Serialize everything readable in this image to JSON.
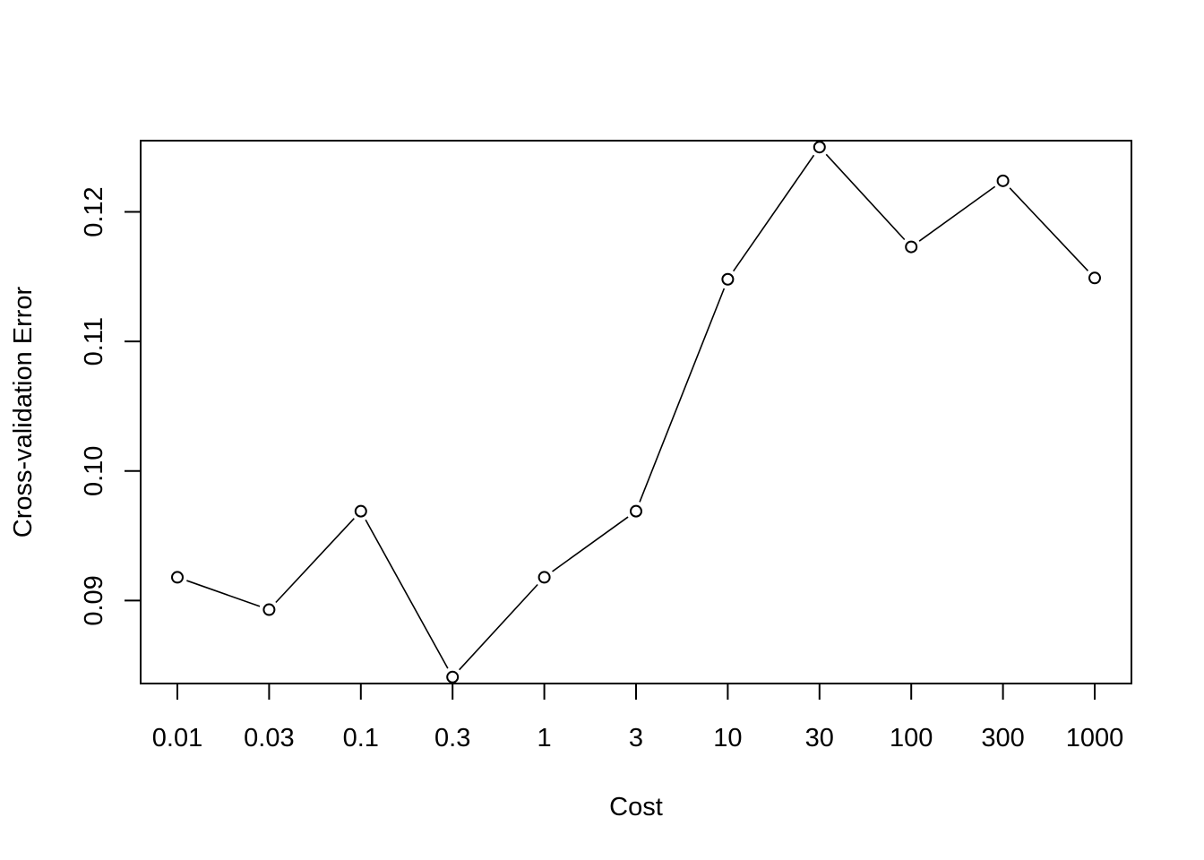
{
  "chart_data": {
    "type": "line",
    "title": "",
    "xlabel": "Cost",
    "ylabel": "Cross-validation Error",
    "x": [
      "0.01",
      "0.03",
      "0.1",
      "0.3",
      "1",
      "3",
      "10",
      "30",
      "100",
      "300",
      "1000"
    ],
    "y": [
      0.0918,
      0.0893,
      0.0969,
      0.0841,
      0.0918,
      0.0969,
      0.1148,
      0.125,
      0.1173,
      0.1224,
      0.1149
    ],
    "xscale": "log (evenly spaced categories)",
    "ylim": [
      0.0836,
      0.1255
    ],
    "yticks": [
      "0.09",
      "0.10",
      "0.11",
      "0.12"
    ],
    "ytick_values": [
      0.09,
      0.1,
      0.11,
      0.12
    ],
    "marker": "open circle",
    "line_color": "#000000",
    "grid": false,
    "legend": "none"
  }
}
